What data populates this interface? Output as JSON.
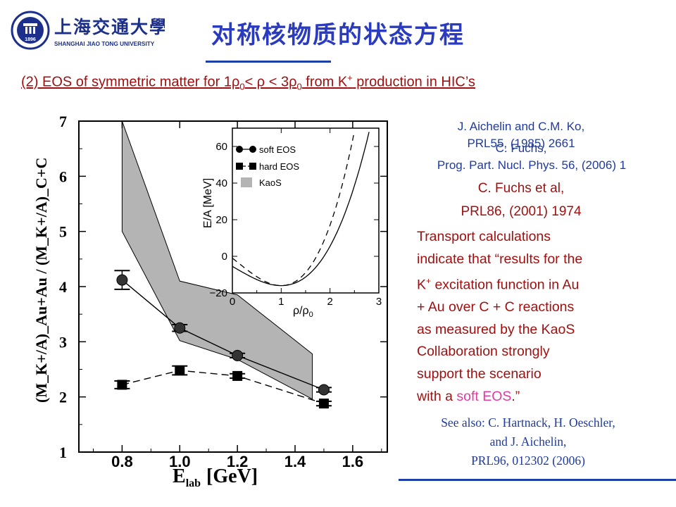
{
  "header": {
    "logo_cn": "上海交通大學",
    "logo_en": "SHANGHAI JIAO TONG UNIVERSITY",
    "seal_year": "1896",
    "title": "对称核物质的状态方程"
  },
  "subtitle": {
    "p1": "(2) EOS of symmetric matter for 1ρ",
    "s1": "0",
    "p2": "< ρ < 3ρ",
    "s2": "0",
    "p3": " from K",
    "sup": "+",
    "p4": " production in HIC’s"
  },
  "refs": {
    "aichelin_1": "J. Aichelin and C.M. Ko,",
    "aichelin_2": "PRL55, (1985) 2661",
    "fuchs_1": "C. Fuchs,",
    "fuchs_2": "Prog. Part. Nucl. Phys. 56, (2006) 1",
    "fuchs_al_1": "C. Fuchs et al,",
    "fuchs_al_2": "PRL86, (2001) 1974"
  },
  "quote": {
    "l1": "Transport calculations",
    "l2": "indicate that “results for the",
    "l3a": "K",
    "l3sup": "+",
    "l3b": " excitation function in Au",
    "l4": "+ Au over C + C reactions",
    "l5": "as measured by the KaoS",
    "l6": "Collaboration strongly",
    "l7": "support the scenario",
    "l8a": "with a ",
    "l8soft": "soft EOS",
    "l8b": ".”"
  },
  "see_also": {
    "l1": "See also: C. Hartnack, H. Oeschler,",
    "l2": "and J. Aichelin,",
    "l3": "PRL96, 012302 (2006)"
  },
  "colors": {
    "title_blue": "#2a3bbf",
    "text_red": "#a11010",
    "ref_blue": "#1f3a9f",
    "soft_eos_pink": "#e23aa0",
    "band_gray": "#b4b4b4"
  },
  "chart_data": [
    {
      "type": "line",
      "xlabel": "E",
      "xlabel_sub": "lab",
      "xlabel_unit": "[GeV]",
      "ylabel": "(M_K+/A)_Au+Au / (M_K+/A)_C+C",
      "xlim": [
        0.65,
        1.72
      ],
      "ylim": [
        1,
        7
      ],
      "xticks": [
        0.8,
        1.0,
        1.2,
        1.4,
        1.6
      ],
      "xtick_labels": [
        "0.8",
        "1.0",
        "1.2",
        "1.4",
        "1.6"
      ],
      "yticks": [
        1,
        2,
        3,
        4,
        5,
        6,
        7
      ],
      "ytick_labels": [
        "1",
        "2",
        "3",
        "4",
        "5",
        "6",
        "7"
      ],
      "band": {
        "upper": [
          [
            0.8,
            7.0
          ],
          [
            1.0,
            4.1
          ],
          [
            1.2,
            3.85
          ],
          [
            1.46,
            2.78
          ]
        ],
        "lower": [
          [
            0.8,
            5.0
          ],
          [
            1.0,
            3.02
          ],
          [
            1.2,
            2.68
          ],
          [
            1.46,
            1.96
          ]
        ]
      },
      "series": [
        {
          "style": "solid-circle",
          "x": [
            0.8,
            1.0,
            1.2,
            1.5
          ],
          "values": [
            4.12,
            3.25,
            2.75,
            2.13
          ],
          "err": [
            0.17,
            0.06,
            0.04,
            0.04
          ]
        },
        {
          "style": "dashed-square",
          "x": [
            0.8,
            1.0,
            1.2,
            1.5
          ],
          "values": [
            2.22,
            2.48,
            2.38,
            1.88
          ],
          "err": [
            0.07,
            0.08,
            0.04,
            0.04
          ]
        }
      ]
    },
    {
      "type": "line",
      "xlabel": "ρ/ρ",
      "xlabel_sub": "0",
      "ylabel": "E/A [MeV]",
      "xlim": [
        0,
        3
      ],
      "ylim": [
        -20,
        70
      ],
      "xticks": [
        0,
        1,
        2,
        3
      ],
      "xtick_labels": [
        "0",
        "1",
        "2",
        "3"
      ],
      "yticks": [
        -20,
        0,
        20,
        40,
        60
      ],
      "ytick_labels": [
        "−20",
        "0",
        "20",
        "40",
        "60"
      ],
      "legend_position": "top-left",
      "legend": [
        "soft EOS",
        "hard EOS",
        "KaoS"
      ]
    }
  ]
}
